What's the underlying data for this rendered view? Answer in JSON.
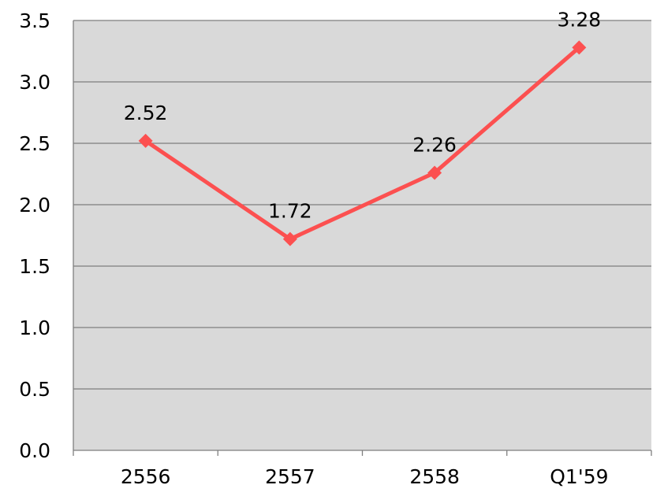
{
  "chart_data": {
    "type": "line",
    "title": "",
    "xlabel": "",
    "ylabel": "",
    "categories": [
      "2556",
      "2557",
      "2558",
      "Q1'59"
    ],
    "series": [
      {
        "values": [
          2.52,
          1.72,
          2.26,
          3.28
        ],
        "data_labels": [
          "2.52",
          "1.72",
          "2.26",
          "3.28"
        ]
      }
    ],
    "ylim": [
      0,
      3.5
    ],
    "y_ticks": [
      "0.0",
      "0.5",
      "1.0",
      "1.5",
      "2.0",
      "2.5",
      "3.0",
      "3.5"
    ],
    "grid": true,
    "legend": "none",
    "colors": {
      "series": "#fc5050",
      "plot_background": "#d9d9d9",
      "gridline": "#7f7f7f",
      "axis": "#7f7f7f"
    }
  }
}
